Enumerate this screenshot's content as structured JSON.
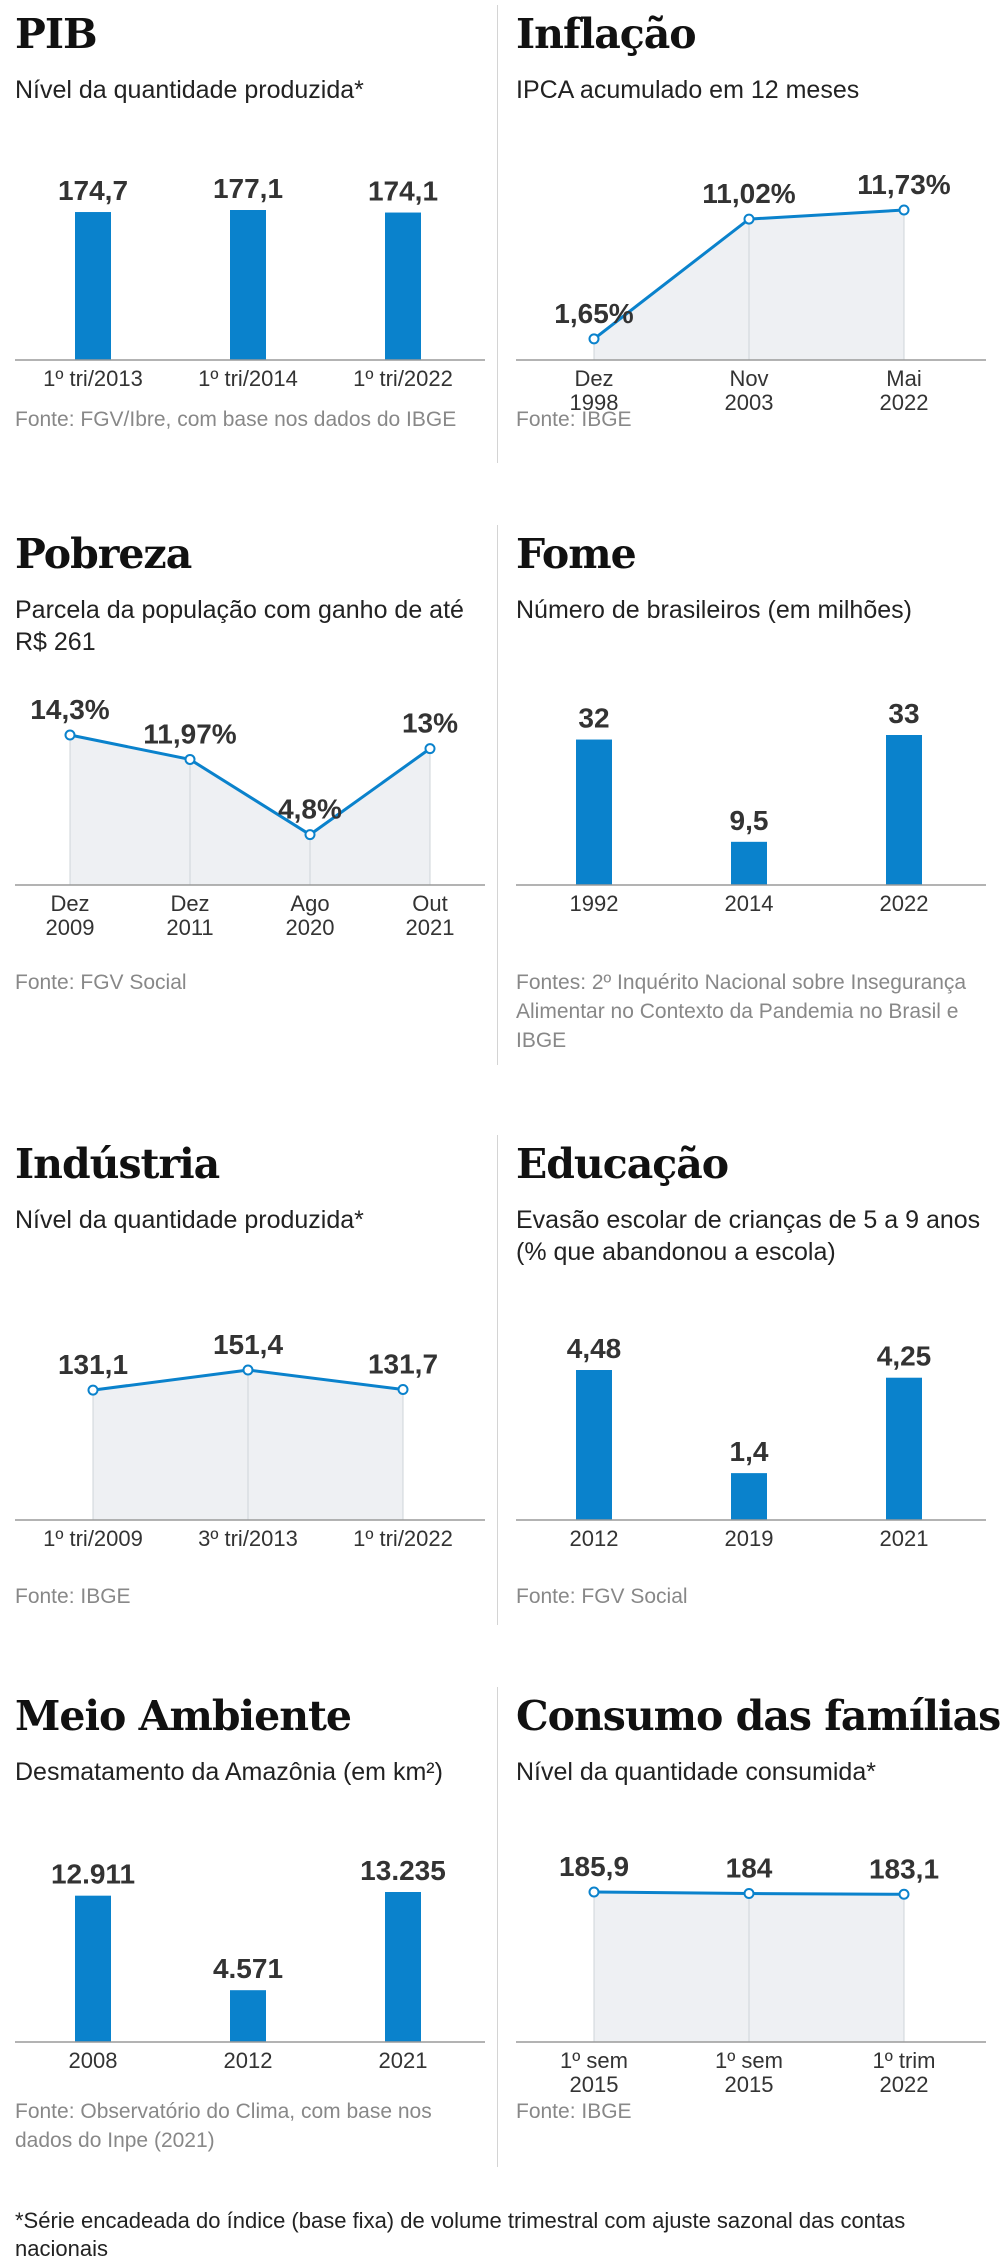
{
  "colors": {
    "bar": "#0a82cc",
    "line": "#0a82cc",
    "area": "#eef0f3",
    "axis": "#9a9a9a",
    "grid": "#cfd4d8"
  },
  "panels": {
    "pib": {
      "title": "PIB",
      "subtitle": "Nível da quantidade produzida*",
      "source": "Fonte: FGV/Ibre, com base nos dados do IBGE"
    },
    "inflacao": {
      "title": "Inflação",
      "subtitle": "IPCA acumulado em 12 meses",
      "source": "Fonte: IBGE"
    },
    "pobreza": {
      "title": "Pobreza",
      "subtitle": "Parcela da população com ganho de até R$ 261",
      "source": "Fonte: FGV Social"
    },
    "fome": {
      "title": "Fome",
      "subtitle": "Número de brasileiros (em milhões)",
      "source": "Fontes: 2º Inquérito Nacional sobre Insegurança Alimentar no Contexto da Pandemia no Brasil e IBGE"
    },
    "industria": {
      "title": "Indústria",
      "subtitle": "Nível da quantidade produzida*",
      "source": "Fonte: IBGE"
    },
    "educacao": {
      "title": "Educação",
      "subtitle": "Evasão escolar de crianças de 5 a 9 anos (% que abandonou a escola)",
      "source": "Fonte: FGV Social"
    },
    "meio": {
      "title": "Meio Ambiente",
      "subtitle": "Desmatamento da Amazônia (em km²)",
      "source": "Fonte: Observatório do Clima, com base nos dados do Inpe (2021)"
    },
    "consumo": {
      "title": "Consumo das famílias",
      "subtitle": "Nível da quantidade consumida*",
      "source": "Fonte: IBGE"
    }
  },
  "footnote": "*Série encadeada do índice (base fixa) de volume trimestral com ajuste sazonal das contas nacionais",
  "chart_data": [
    {
      "id": "pib",
      "type": "bar",
      "categories": [
        [
          "1º tri/2013"
        ],
        [
          "1º tri/2014"
        ],
        [
          "1º tri/2022"
        ]
      ],
      "values": [
        174.7,
        177.1,
        174.1
      ],
      "labels": [
        "174,7",
        "177,1",
        "174,1"
      ],
      "ylim": [
        0,
        177.1
      ]
    },
    {
      "id": "inflacao",
      "type": "area",
      "categories": [
        [
          "Dez",
          "1998"
        ],
        [
          "Nov",
          "2003"
        ],
        [
          "Mai",
          "2022"
        ]
      ],
      "values": [
        1.65,
        11.02,
        11.73
      ],
      "labels": [
        "1,65%",
        "11,02%",
        "11,73%"
      ],
      "ylim": [
        0,
        11.73
      ]
    },
    {
      "id": "pobreza",
      "type": "area",
      "categories": [
        [
          "Dez",
          "2009"
        ],
        [
          "Dez",
          "2011"
        ],
        [
          "Ago",
          "2020"
        ],
        [
          "Out",
          "2021"
        ]
      ],
      "values": [
        14.3,
        11.97,
        4.8,
        13
      ],
      "labels": [
        "14,3%",
        "11,97%",
        "4,8%",
        "13%"
      ],
      "ylim": [
        0,
        14.3
      ]
    },
    {
      "id": "fome",
      "type": "bar",
      "categories": [
        [
          "1992"
        ],
        [
          "2014"
        ],
        [
          "2022"
        ]
      ],
      "values": [
        32,
        9.5,
        33
      ],
      "labels": [
        "32",
        "9,5",
        "33"
      ],
      "ylim": [
        0,
        33
      ]
    },
    {
      "id": "industria",
      "type": "area",
      "categories": [
        [
          "1º tri/2009"
        ],
        [
          "3º tri/2013"
        ],
        [
          "1º tri/2022"
        ]
      ],
      "values": [
        131.1,
        151.4,
        131.7
      ],
      "labels": [
        "131,1",
        "151,4",
        "131,7"
      ],
      "ylim": [
        0,
        151.4
      ]
    },
    {
      "id": "educacao",
      "type": "bar",
      "categories": [
        [
          "2012"
        ],
        [
          "2019"
        ],
        [
          "2021"
        ]
      ],
      "values": [
        4.48,
        1.4,
        4.25
      ],
      "labels": [
        "4,48",
        "1,4",
        "4,25"
      ],
      "ylim": [
        0,
        4.48
      ]
    },
    {
      "id": "meio",
      "type": "bar",
      "categories": [
        [
          "2008"
        ],
        [
          "2012"
        ],
        [
          "2021"
        ]
      ],
      "values": [
        12911,
        4571,
        13235
      ],
      "labels": [
        "12.911",
        "4.571",
        "13.235"
      ],
      "ylim": [
        0,
        13235
      ]
    },
    {
      "id": "consumo",
      "type": "area",
      "categories": [
        [
          "1º sem",
          "2015"
        ],
        [
          "1º sem",
          "2015"
        ],
        [
          "1º trim",
          "2022"
        ]
      ],
      "values": [
        185.9,
        184,
        183.1
      ],
      "labels": [
        "185,9",
        "184",
        "183,1"
      ],
      "ylim": [
        0,
        185.9
      ]
    }
  ]
}
